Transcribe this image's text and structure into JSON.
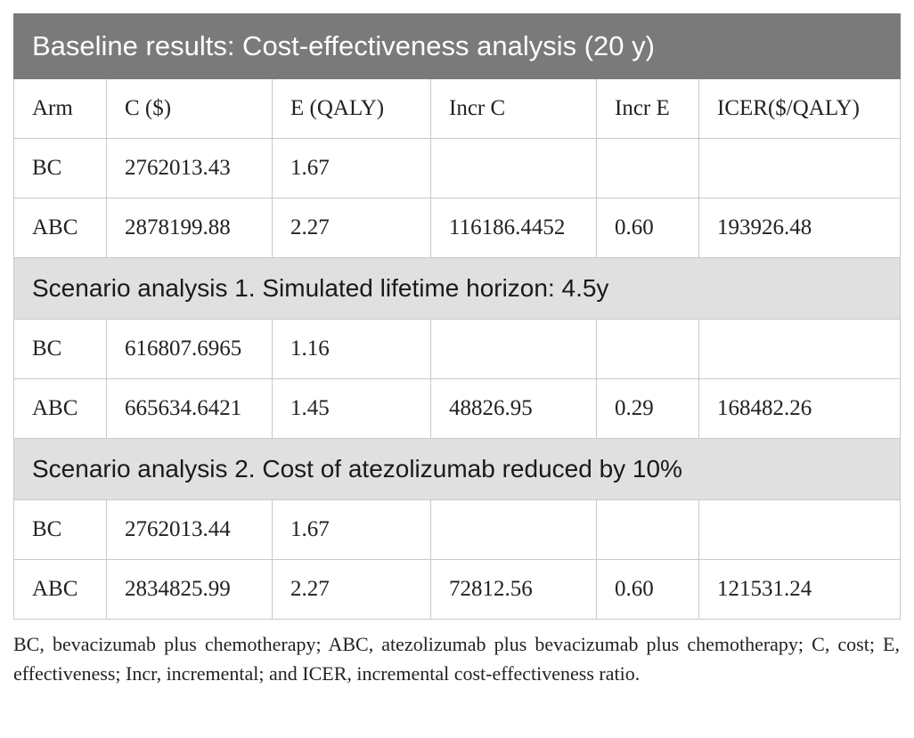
{
  "table": {
    "title": "Baseline results: Cost-effectiveness analysis (20 y)",
    "headers": [
      "Arm",
      "C ($)",
      "E (QALY)",
      "Incr C",
      "Incr E",
      "ICER($/QALY)"
    ],
    "baseline_rows": [
      [
        "BC",
        "2762013.43",
        "1.67",
        "",
        "",
        ""
      ],
      [
        "ABC",
        "2878199.88",
        "2.27",
        "116186.4452",
        "0.60",
        "193926.48"
      ]
    ],
    "scenario1": {
      "title": "Scenario analysis 1. Simulated lifetime horizon: 4.5y",
      "rows": [
        [
          "BC",
          "616807.6965",
          "1.16",
          "",
          "",
          ""
        ],
        [
          "ABC",
          "665634.6421",
          "1.45",
          "48826.95",
          "0.29",
          "168482.26"
        ]
      ]
    },
    "scenario2": {
      "title": "Scenario analysis 2. Cost of atezolizumab reduced by 10%",
      "rows": [
        [
          "BC",
          "2762013.44",
          "1.67",
          "",
          "",
          ""
        ],
        [
          "ABC",
          "2834825.99",
          "2.27",
          "72812.56",
          "0.60",
          "121531.24"
        ]
      ]
    }
  },
  "footnote": "BC, bevacizumab plus chemotherapy; ABC, atezolizumab plus bevacizumab plus chemotherapy; C, cost; E, effectiveness; Incr, incremental; and ICER, incremental cost-effectiveness ratio.",
  "colors": {
    "title_bg": "#7a7a7a",
    "section_bg": "#e0e0e0",
    "border": "#c9c9c9"
  }
}
